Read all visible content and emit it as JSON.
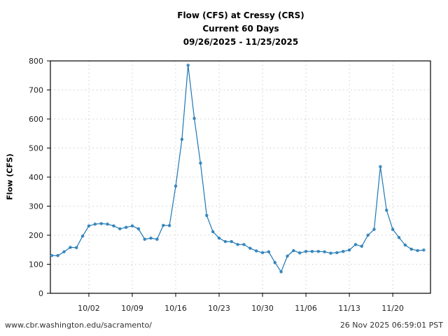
{
  "title": {
    "line1": "Flow (CFS) at Cressy (CRS)",
    "line2": "Current 60 Days",
    "line3": "09/26/2025 - 11/25/2025"
  },
  "footer": {
    "url": "www.cbr.washington.edu/sacramento/",
    "timestamp": "26 Nov 2025 06:59:01 PST"
  },
  "colors": {
    "line": "#1f77b4",
    "grid": "#cccccc",
    "axis": "#000000"
  },
  "chart_data": {
    "type": "line",
    "title": "Flow (CFS) at Cressy (CRS) — Current 60 Days — 09/26/2025 - 11/25/2025",
    "xlabel": "",
    "ylabel": "Flow (CFS)",
    "ylim": [
      0,
      800
    ],
    "yticks": [
      0,
      100,
      200,
      300,
      400,
      500,
      600,
      700,
      800
    ],
    "xtick_labels": [
      "10/02",
      "10/09",
      "10/16",
      "10/23",
      "10/30",
      "11/06",
      "11/13",
      "11/20"
    ],
    "xtick_day_offsets": [
      6,
      13,
      20,
      27,
      34,
      41,
      48,
      55
    ],
    "grid": true,
    "legend": null,
    "x_start": "09/26/2025",
    "series": [
      {
        "name": "Flow (CFS)",
        "values": [
          130,
          130,
          143,
          158,
          157,
          197,
          232,
          238,
          240,
          238,
          232,
          222,
          227,
          232,
          222,
          186,
          190,
          186,
          234,
          233,
          369,
          530,
          785,
          602,
          448,
          268,
          212,
          190,
          178,
          178,
          168,
          168,
          155,
          146,
          140,
          143,
          106,
          74,
          128,
          147,
          139,
          144,
          144,
          144,
          143,
          138,
          140,
          144,
          149,
          168,
          162,
          200,
          220,
          436,
          286,
          220,
          192,
          166,
          152,
          147,
          149
        ]
      }
    ]
  }
}
